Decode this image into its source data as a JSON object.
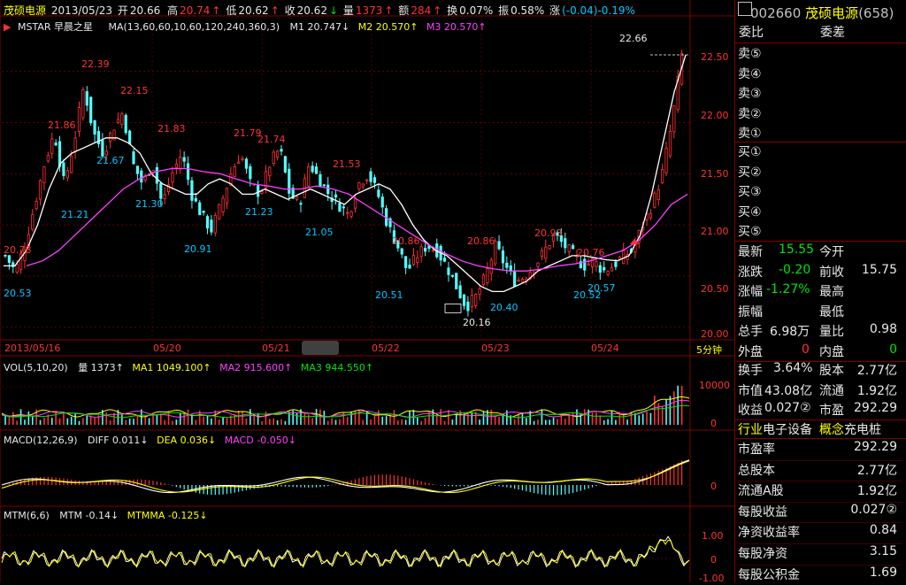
{
  "header": {
    "name": "茂硕电源",
    "date": "2013/05/23",
    "open_label": "开",
    "open": "20.66",
    "high_label": "高",
    "high": "20.74",
    "low_label": "低",
    "low": "20.62",
    "close_label": "收",
    "close": "20.62",
    "vol_label": "量",
    "vol": "1373",
    "amt_label": "额",
    "amt": "284",
    "turn_label": "换",
    "turn": "0.07%",
    "amp_label": "振",
    "amp": "0.58%",
    "chg_label": "涨",
    "chg": "(-0.04)-0.19%"
  },
  "ma_legend": {
    "mstar": "MSTAR 早晨之星",
    "params": "MA(13,60,60,10,60,120,240,360,3)",
    "m1": "M1 20.747↓",
    "m2": "M2 20.570↑",
    "m3": "M3 20.570↑"
  },
  "vol_legend": {
    "name": "VOL(5,10,20)",
    "vol": "量 1373↑",
    "ma1": "MA1 1049.100↑",
    "ma2": "MA2 915.600↑",
    "ma3": "MA3 944.550↑"
  },
  "macd_legend": {
    "name": "MACD(12,26,9)",
    "diff": "DIFF 0.011↓",
    "dea": "DEA 0.036↓",
    "macd": "MACD -0.050↓"
  },
  "mtm_legend": {
    "name": "MTM(6,6)",
    "mtm": "MTM -0.14↓",
    "mtmma": "MTMMA -0.125↓"
  },
  "period_label": "5分钟",
  "colors": {
    "up": "#ff3232",
    "down": "#54ffff",
    "m1": "#ffffff",
    "m2": "#ff40ff",
    "grid": "#800000",
    "axis": "#ff3232"
  },
  "chart_data": {
    "type": "candlestick",
    "y_axis": {
      "ticks": [
        "22.50",
        "22.00",
        "21.50",
        "21.00",
        "20.50",
        "20.00"
      ],
      "values": [
        22.5,
        22.0,
        21.5,
        21.0,
        20.5,
        20.0
      ],
      "ylim": [
        19.93,
        22.85
      ]
    },
    "x_axis": {
      "labels": [
        "2013/05/16",
        "05/20",
        "05/21",
        "05/22",
        "05/23",
        "05/24"
      ]
    },
    "price_annotations": [
      "20.78",
      "20.53",
      "21.86",
      "21.21",
      "22.39",
      "21.67",
      "22.15",
      "21.30",
      "21.83",
      "20.91",
      "21.79",
      "21.23",
      "21.74",
      "21.05",
      "21.53",
      "20.51",
      "20.86",
      "20.16",
      "20.86",
      "20.40",
      "20.93",
      "20.52",
      "20.76",
      "20.57",
      "22.66"
    ],
    "close_path": [
      20.7,
      20.55,
      20.8,
      21.2,
      21.6,
      21.9,
      21.4,
      21.8,
      22.35,
      21.9,
      21.7,
      21.95,
      22.1,
      21.6,
      21.4,
      21.6,
      21.2,
      21.5,
      21.7,
      21.3,
      21.1,
      20.95,
      21.2,
      21.5,
      21.7,
      21.4,
      21.3,
      21.6,
      21.75,
      21.3,
      21.2,
      21.6,
      21.45,
      21.3,
      21.2,
      21.1,
      21.4,
      21.5,
      21.3,
      21.0,
      20.8,
      20.55,
      20.7,
      20.8,
      20.75,
      20.6,
      20.4,
      20.2,
      20.3,
      20.5,
      20.8,
      20.6,
      20.45,
      20.5,
      20.6,
      20.75,
      20.9,
      20.8,
      20.7,
      20.6,
      20.65,
      20.55,
      20.6,
      20.7,
      20.75,
      21.0,
      21.2,
      21.5,
      22.0,
      22.66
    ],
    "m1_path": [
      20.6,
      20.6,
      20.75,
      21.0,
      21.35,
      21.6,
      21.7,
      21.75,
      21.8,
      21.85,
      21.85,
      21.8,
      21.7,
      21.5,
      21.4,
      21.35,
      21.3,
      21.3,
      21.4,
      21.45,
      21.4,
      21.3,
      21.3,
      21.35,
      21.3,
      21.25,
      21.3,
      21.35,
      21.3,
      21.25,
      21.2,
      21.3,
      21.35,
      21.4,
      21.35,
      21.2,
      21.0,
      20.85,
      20.75,
      20.7,
      20.6,
      20.5,
      20.4,
      20.35,
      20.35,
      20.4,
      20.45,
      20.55,
      20.6,
      20.65,
      20.7,
      20.7,
      20.68,
      20.66,
      20.65,
      20.7,
      20.9,
      21.3,
      21.8,
      22.3,
      22.66
    ],
    "m2_path": [
      20.6,
      20.65,
      20.75,
      20.9,
      21.05,
      21.2,
      21.35,
      21.45,
      21.52,
      21.55,
      21.55,
      21.52,
      21.5,
      21.45,
      21.4,
      21.38,
      21.35,
      21.35,
      21.38,
      21.35,
      21.3,
      21.2,
      21.1,
      21.0,
      20.9,
      20.8,
      20.72,
      20.65,
      20.6,
      20.57,
      20.55,
      20.55,
      20.57,
      20.6,
      20.62,
      20.65,
      20.7,
      20.75,
      20.85,
      21.0,
      21.2,
      21.3
    ],
    "volume_axis": {
      "ticks": [
        "10000",
        "0"
      ],
      "values": [
        10000,
        0
      ]
    },
    "macd_axis": {
      "ticks": [
        "0"
      ],
      "values": [
        0
      ]
    },
    "mtm_axis": {
      "ticks": [
        "1.00",
        "0",
        "-1.00"
      ],
      "values": [
        1,
        0,
        -1
      ]
    }
  },
  "quote": {
    "code": "002660",
    "name": "茂硕电源",
    "market": "(658)",
    "weibi_label": "委比",
    "weicha_label": "委差",
    "sell_labels": [
      "卖⑤",
      "卖④",
      "卖③",
      "卖②",
      "卖①"
    ],
    "buy_labels": [
      "买①",
      "买②",
      "买③",
      "买④",
      "买⑤"
    ],
    "last_label": "最新",
    "last": "15.55",
    "open_label": "今开",
    "open": "",
    "chg_label": "涨跌",
    "chg": "-0.20",
    "prev_label": "前收",
    "prev": "15.75",
    "pct_label": "涨幅",
    "pct": "-1.27%",
    "high_label": "最高",
    "high": "",
    "amp_label": "振幅",
    "amp": "",
    "low_label": "最低",
    "low": "",
    "total_label": "总手",
    "total": "6.98万",
    "ratio_label": "量比",
    "ratio": "0.98",
    "outer_label": "外盘",
    "outer": "0",
    "inner_label": "内盘",
    "inner": "0",
    "turn_label": "换手",
    "turn": "3.64%",
    "shares_label": "股本",
    "shares": "2.77亿",
    "mcap_label": "市值",
    "mcap": "43.08亿",
    "float_label": "流通",
    "float": "1.92亿",
    "eps_label": "收益",
    "eps": "0.027②",
    "pe_label": "市盈",
    "pe": "292.29",
    "industry_label": "行业",
    "industry": "电子设备",
    "concept_label": "概念",
    "concept": "充电桩",
    "f_pe_label": "市盈率",
    "f_pe": "292.29",
    "f_shares_label": "总股本",
    "f_shares": "2.77亿",
    "f_float_label": "流通A股",
    "f_float": "1.92亿",
    "f_eps_label": "每股收益",
    "f_eps": "0.027②",
    "f_roe_label": "净资收益率",
    "f_roe": "0.84",
    "f_bvps_label": "每股净资",
    "f_bvps": "3.15",
    "f_reserve_label": "每股公积金",
    "f_reserve": "1.69"
  }
}
